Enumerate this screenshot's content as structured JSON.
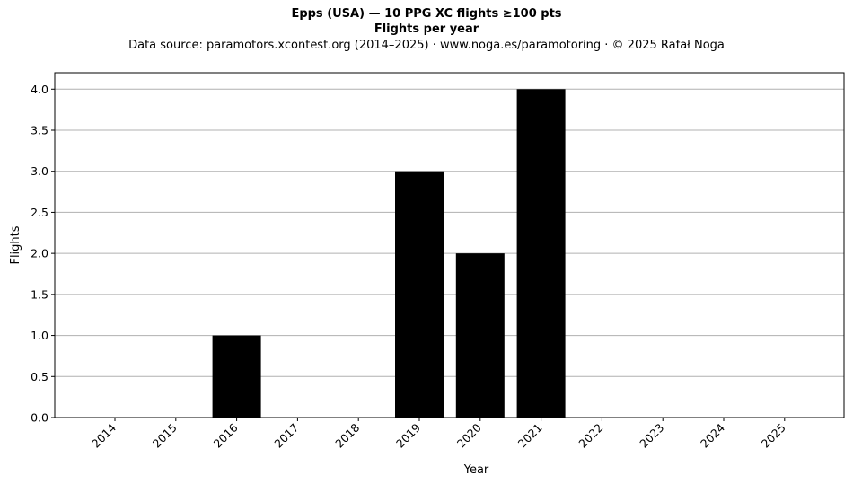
{
  "chart_data": {
    "type": "bar",
    "title": "Epps (USA)  —  10 PPG XC flights ≥100 pts",
    "title_line2": "Flights per year",
    "subtitle": "Data source: paramotors.xcontest.org (2014–2025)  ·  www.noga.es/paramotoring  ·  © 2025 Rafał Noga",
    "xlabel": "Year",
    "ylabel": "Flights",
    "categories": [
      "2014",
      "2015",
      "2016",
      "2017",
      "2018",
      "2019",
      "2020",
      "2021",
      "2022",
      "2023",
      "2024",
      "2025"
    ],
    "values": [
      0,
      0,
      1,
      0,
      0,
      3,
      2,
      4,
      0,
      0,
      0,
      0
    ],
    "ylim": [
      0,
      4.2
    ],
    "yticks": [
      "0.0",
      "0.5",
      "1.0",
      "1.5",
      "2.0",
      "2.5",
      "3.0",
      "3.5",
      "4.0"
    ],
    "grid": "horizontal",
    "bar_color": "#000000",
    "grid_color": "#b0b0b0"
  }
}
